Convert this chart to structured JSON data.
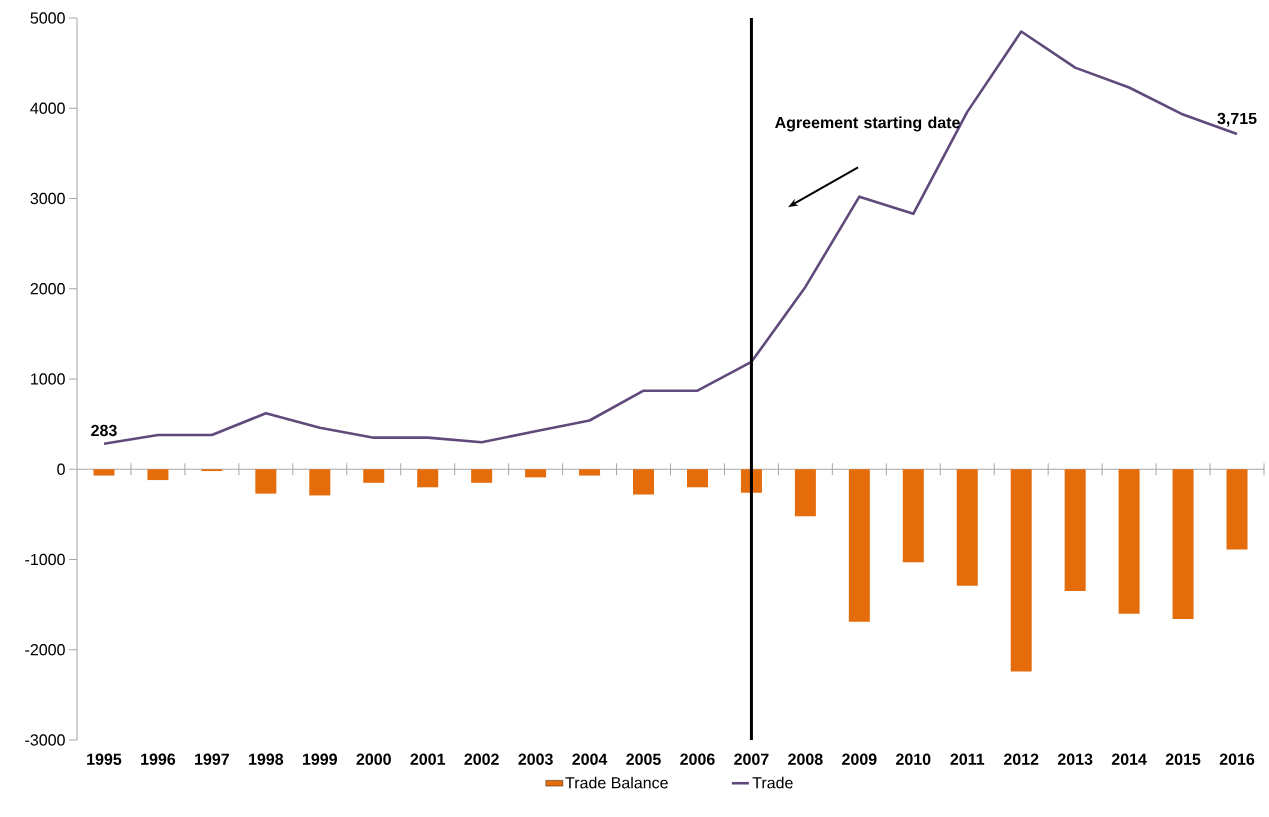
{
  "chart_data": {
    "type": "bar",
    "x": [
      1995,
      1996,
      1997,
      1998,
      1999,
      2000,
      2001,
      2002,
      2003,
      2004,
      2005,
      2006,
      2007,
      2008,
      2009,
      2010,
      2011,
      2012,
      2013,
      2014,
      2015,
      2016
    ],
    "series": [
      {
        "name": "Trade Balance",
        "color": "#e46c0a",
        "values": [
          -70,
          -120,
          -20,
          -270,
          -290,
          -150,
          -200,
          -150,
          -90,
          -70,
          -280,
          -200,
          -260,
          -520,
          -1690,
          -1030,
          -1290,
          -2240,
          -1350,
          -1600,
          -1660,
          -890
        ]
      },
      {
        "name": "Trade",
        "type": "line",
        "color": "#604a7b",
        "values": [
          283,
          380,
          380,
          620,
          460,
          350,
          350,
          300,
          420,
          540,
          870,
          870,
          1190,
          2020,
          3020,
          2830,
          3960,
          4850,
          4450,
          4230,
          3930,
          3715
        ],
        "value_labels": [
          "283",
          null,
          null,
          null,
          null,
          null,
          null,
          null,
          null,
          null,
          null,
          null,
          null,
          null,
          null,
          null,
          null,
          null,
          null,
          null,
          null,
          "3,715"
        ]
      }
    ],
    "xlim": [
      1994.5,
      2016.5
    ],
    "xticks": [
      1995,
      1996,
      1997,
      1998,
      1999,
      2000,
      2001,
      2002,
      2003,
      2004,
      2005,
      2006,
      2007,
      2008,
      2009,
      2010,
      2011,
      2012,
      2013,
      2014,
      2015,
      2016
    ],
    "ylim": [
      -3000,
      5000
    ],
    "yticks": [
      -3000,
      -2000,
      -1000,
      0,
      1000,
      2000,
      3000,
      4000,
      5000
    ],
    "ref_lines": [
      {
        "axis": "x",
        "value": 2007,
        "label": "Agreement starting date",
        "color": "#000000"
      }
    ],
    "legend": "bottom",
    "grid": false
  }
}
